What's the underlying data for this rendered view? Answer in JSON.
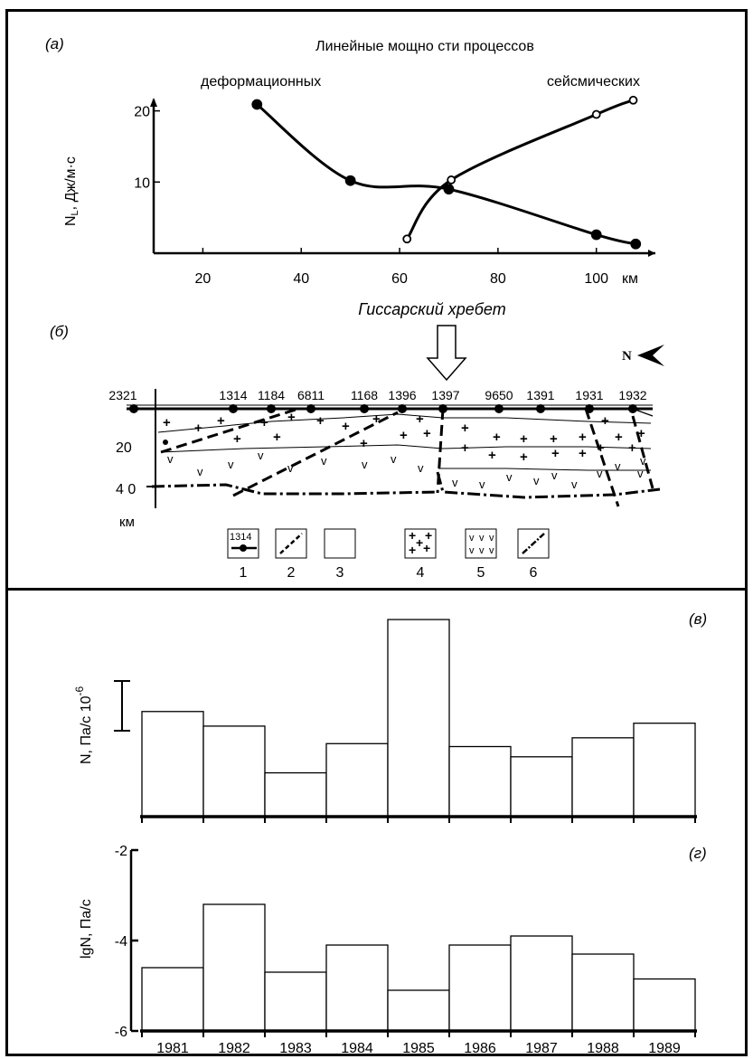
{
  "figure": {
    "panel_a_label": "(а)",
    "panel_b_label": "(б)",
    "panel_c_label": "(в)",
    "panel_d_label": "(г)"
  },
  "chart_data": [
    {
      "type": "line",
      "title": "Линейные мощно сти процессов",
      "xlabel": "",
      "x_unit": "км",
      "ylabel": "N",
      "ylabel_sub": "L",
      "ylabel_rest": ", Дж/м·с",
      "xticks": [
        "20",
        "40",
        "60",
        "80",
        "100"
      ],
      "yticks": [
        "10",
        "20"
      ],
      "xlim": [
        10,
        112
      ],
      "ylim": [
        0,
        21.6
      ],
      "series": [
        {
          "name": "деформационных",
          "marker": "filled-circle",
          "points": [
            [
              31,
              20.9
            ],
            [
              50,
              10.2
            ],
            [
              70,
              9.0
            ],
            [
              100,
              2.6
            ],
            [
              108,
              1.3
            ]
          ]
        },
        {
          "name": "сейсмических",
          "marker": "open-circle",
          "points": [
            [
              61.5,
              2.0
            ],
            [
              70.5,
              10.3
            ],
            [
              100,
              19.5
            ],
            [
              107.5,
              21.5
            ]
          ]
        }
      ]
    },
    {
      "type": "cross-section",
      "title": "Гиссарский хребет",
      "north_label": "N",
      "depth_unit": "км",
      "depth_ticks": [
        "20",
        "4 0"
      ],
      "stations": [
        "2321",
        "1314",
        "1184",
        "6811",
        "1168",
        "1396",
        "1397",
        "9650",
        "1391",
        "1931",
        "1932"
      ],
      "legend": [
        {
          "number": "1",
          "sample": "1314"
        },
        {
          "number": "2"
        },
        {
          "number": "3"
        },
        {
          "number": "4"
        },
        {
          "number": "5"
        },
        {
          "number": "6"
        }
      ]
    },
    {
      "type": "bar",
      "ylabel": "N, Па/с 10",
      "ylabel_exp": "-6",
      "categories": [
        "1981",
        "1982",
        "1983",
        "1984",
        "1985",
        "1986",
        "1987",
        "1988",
        "1989"
      ],
      "values": [
        0.72,
        0.62,
        0.3,
        0.5,
        1.35,
        0.48,
        0.41,
        0.54,
        0.64
      ],
      "ylim": [
        0,
        1.4
      ],
      "scale_bar": true
    },
    {
      "type": "bar",
      "ylabel": "lgN, Па/с",
      "yticks": [
        "-2",
        "-4",
        "-6"
      ],
      "categories": [
        "1981",
        "1982",
        "1983",
        "1984",
        "1985",
        "1986",
        "1987",
        "1988",
        "1989"
      ],
      "values": [
        -4.6,
        -3.2,
        -4.7,
        -4.1,
        -5.1,
        -4.1,
        -3.9,
        -4.3,
        -4.85
      ],
      "ylim": [
        -6,
        -2
      ]
    }
  ]
}
